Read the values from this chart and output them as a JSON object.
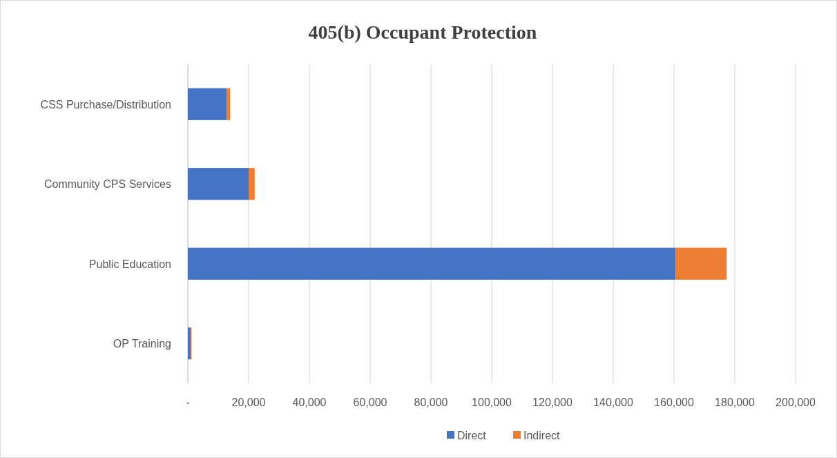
{
  "chart_data": {
    "type": "bar",
    "orientation": "horizontal",
    "stacked": true,
    "title": "405(b) Occupant Protection",
    "categories": [
      "CSS Purchase/Distribution",
      "Community CPS Services",
      "Public Education",
      "OP Training"
    ],
    "series": [
      {
        "name": "Direct",
        "color": "#4472c4",
        "values": [
          12800,
          20000,
          160500,
          900
        ]
      },
      {
        "name": "Indirect",
        "color": "#ed7d31",
        "values": [
          1100,
          2000,
          16800,
          300
        ]
      }
    ],
    "xlim": [
      0,
      200000
    ],
    "xticks": [
      {
        "value": 0,
        "label": "-"
      },
      {
        "value": 20000,
        "label": "20,000"
      },
      {
        "value": 40000,
        "label": "40,000"
      },
      {
        "value": 60000,
        "label": "60,000"
      },
      {
        "value": 80000,
        "label": "80,000"
      },
      {
        "value": 100000,
        "label": "100,000"
      },
      {
        "value": 120000,
        "label": "120,000"
      },
      {
        "value": 140000,
        "label": "140,000"
      },
      {
        "value": 160000,
        "label": "160,000"
      },
      {
        "value": 180000,
        "label": "180,000"
      },
      {
        "value": 200000,
        "label": "200,000"
      }
    ],
    "grid": "x",
    "legend": "bottom"
  }
}
